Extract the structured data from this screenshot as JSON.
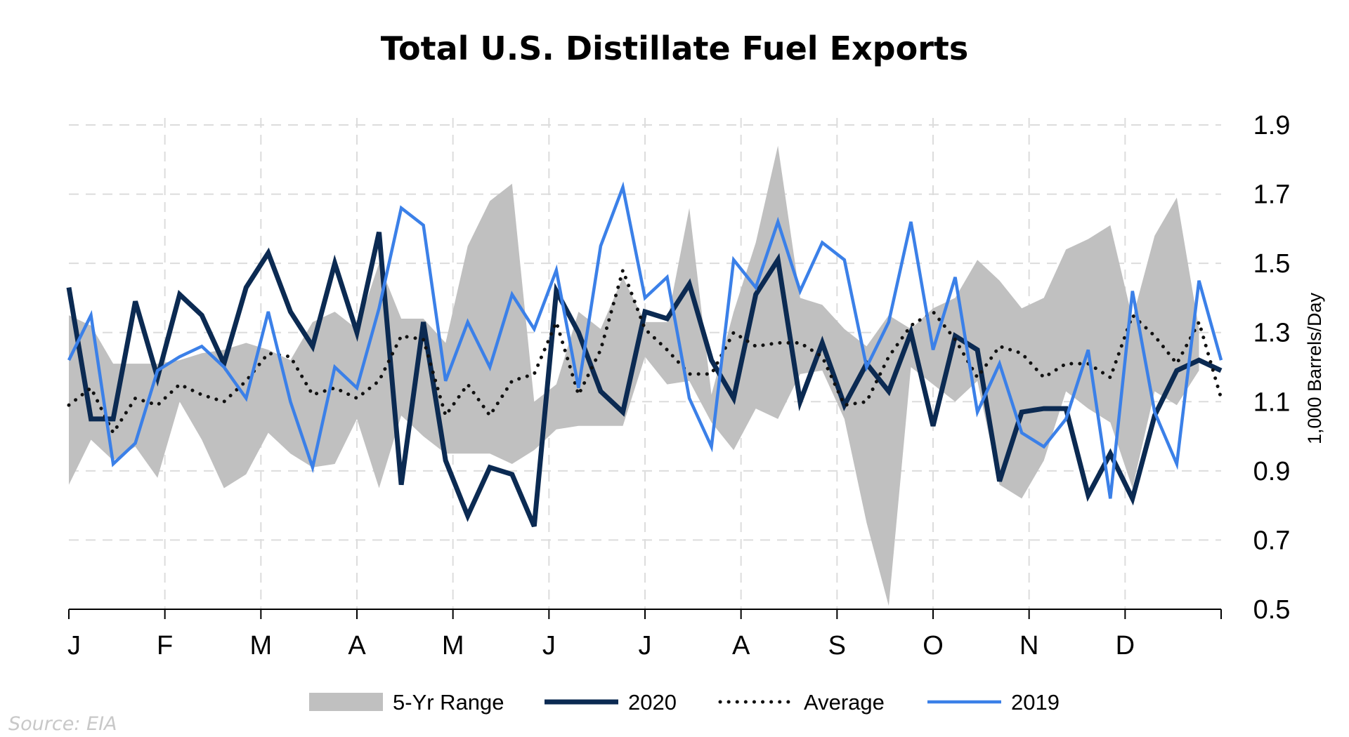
{
  "chart_data": {
    "type": "line",
    "title": "Total U.S. Distillate Fuel Exports",
    "ylabel": "1,000 Barrels/Day",
    "xlabel": "",
    "ylim": [
      0.5,
      1.9
    ],
    "yticks": [
      "0.5",
      "0.7",
      "0.9",
      "1.1",
      "1.3",
      "1.5",
      "1.7",
      "1.9"
    ],
    "months": [
      "J",
      "F",
      "M",
      "A",
      "M",
      "J",
      "J",
      "A",
      "S",
      "O",
      "N",
      "D"
    ],
    "x_weeks": 52,
    "grid": true,
    "legend_position": "bottom",
    "source": "Source: EIA",
    "colors": {
      "range": "#c0c0c0",
      "s2020": "#0b2a52",
      "average": "#111111",
      "s2019": "#3b80e8",
      "grid": "#dcdcdc",
      "source": "#c8c8c8"
    },
    "series": [
      {
        "name": "5-Yr Range",
        "kind": "band",
        "upper": [
          1.35,
          1.32,
          1.21,
          1.21,
          1.21,
          1.22,
          1.24,
          1.25,
          1.27,
          1.25,
          1.22,
          1.33,
          1.36,
          1.31,
          1.5,
          1.34,
          1.34,
          1.27,
          1.55,
          1.68,
          1.73,
          1.1,
          1.15,
          1.36,
          1.31,
          1.46,
          1.33,
          1.33,
          1.66,
          1.12,
          1.36,
          1.56,
          1.84,
          1.4,
          1.38,
          1.31,
          1.26,
          1.35,
          1.31,
          1.37,
          1.4,
          1.51,
          1.45,
          1.37,
          1.4,
          1.54,
          1.57,
          1.61,
          1.34,
          1.58,
          1.69,
          1.31
        ],
        "lower": [
          0.86,
          0.99,
          0.93,
          0.97,
          0.88,
          1.1,
          0.99,
          0.85,
          0.89,
          1.01,
          0.95,
          0.91,
          0.92,
          1.05,
          0.85,
          1.06,
          1.0,
          0.95,
          0.95,
          0.95,
          0.92,
          0.96,
          1.02,
          1.03,
          1.03,
          1.03,
          1.23,
          1.15,
          1.16,
          1.04,
          0.96,
          1.08,
          1.05,
          1.18,
          1.19,
          1.05,
          0.75,
          0.51,
          1.2,
          1.15,
          1.1,
          1.16,
          0.86,
          0.82,
          0.93,
          1.13,
          1.08,
          1.04,
          0.85,
          1.13,
          1.09,
          1.19
        ]
      },
      {
        "name": "2020",
        "kind": "line",
        "values": [
          1.43,
          1.05,
          1.05,
          1.39,
          1.17,
          1.41,
          1.35,
          1.21,
          1.43,
          1.53,
          1.36,
          1.26,
          1.5,
          1.3,
          1.59,
          0.86,
          1.33,
          0.93,
          0.77,
          0.91,
          0.89,
          0.74,
          1.42,
          1.3,
          1.13,
          1.07,
          1.36,
          1.34,
          1.44,
          1.22,
          1.11,
          1.41,
          1.51,
          1.1,
          1.27,
          1.09,
          1.21,
          1.13,
          1.3,
          1.03,
          1.29,
          1.25,
          0.87,
          1.07,
          1.08,
          1.08,
          0.83,
          0.95,
          0.82,
          1.06,
          1.19,
          1.22,
          1.19
        ]
      },
      {
        "name": "Average",
        "kind": "dotted",
        "values": [
          1.09,
          1.14,
          1.01,
          1.11,
          1.09,
          1.15,
          1.12,
          1.1,
          1.16,
          1.24,
          1.23,
          1.12,
          1.14,
          1.11,
          1.16,
          1.29,
          1.28,
          1.06,
          1.15,
          1.06,
          1.16,
          1.18,
          1.33,
          1.12,
          1.25,
          1.48,
          1.31,
          1.25,
          1.18,
          1.18,
          1.3,
          1.26,
          1.27,
          1.27,
          1.23,
          1.09,
          1.1,
          1.23,
          1.32,
          1.36,
          1.28,
          1.17,
          1.26,
          1.24,
          1.17,
          1.21,
          1.21,
          1.17,
          1.35,
          1.29,
          1.21,
          1.33,
          1.11
        ]
      },
      {
        "name": "2019",
        "kind": "line",
        "values": [
          1.22,
          1.35,
          0.92,
          0.98,
          1.19,
          1.23,
          1.26,
          1.2,
          1.11,
          1.36,
          1.1,
          0.91,
          1.2,
          1.14,
          1.37,
          1.66,
          1.61,
          1.16,
          1.33,
          1.2,
          1.41,
          1.31,
          1.48,
          1.14,
          1.55,
          1.72,
          1.4,
          1.46,
          1.11,
          0.97,
          1.51,
          1.43,
          1.62,
          1.42,
          1.56,
          1.51,
          1.2,
          1.33,
          1.62,
          1.25,
          1.46,
          1.07,
          1.21,
          1.01,
          0.97,
          1.05,
          1.25,
          0.82,
          1.42,
          1.07,
          0.92,
          1.45,
          1.22
        ]
      }
    ]
  }
}
